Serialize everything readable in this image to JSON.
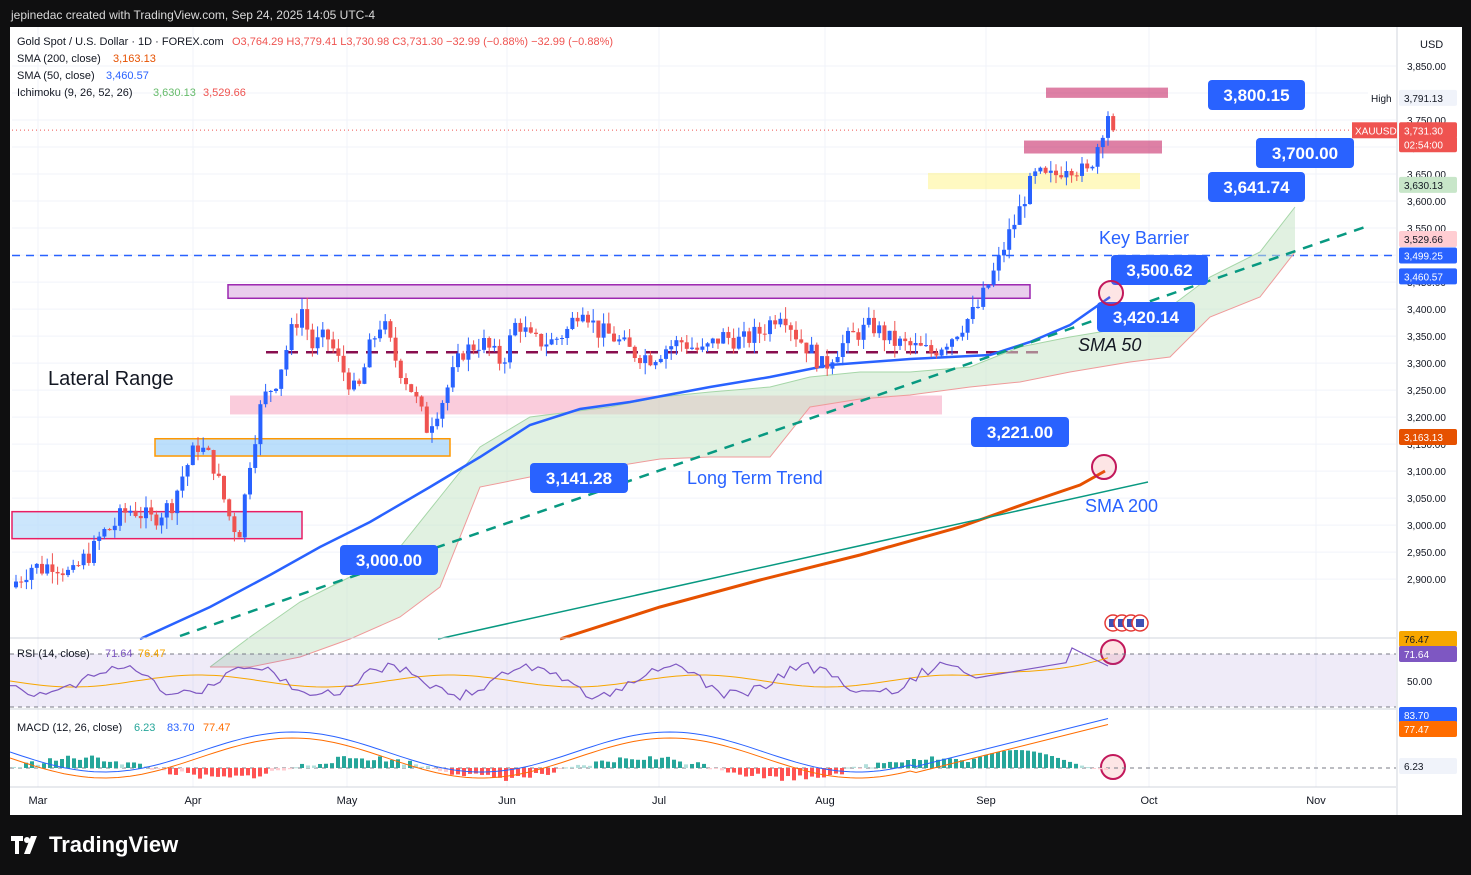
{
  "attribution": "jepinedac created with TradingView.com, Sep 24, 2025 14:05 UTC-4",
  "brand": "TradingView",
  "legend": {
    "symbol": "Gold Spot / U.S. Dollar · 1D · FOREX.com",
    "ohlc": "O3,764.29 H3,779.41 L3,730.98 C3,731.30 −32.99 (−0.88%) −32.99 (−0.88%)",
    "sma200_label": "SMA (200, close)",
    "sma200_value": "3,163.13",
    "sma50_label": "SMA (50, close)",
    "sma50_value": "3,460.57",
    "ichimoku_label": "Ichimoku (9, 26, 52, 26)",
    "ichimoku_a": "3,630.13",
    "ichimoku_b": "3,529.66",
    "rsi_label": "RSI (14, close)",
    "rsi_value": "71.64",
    "rsi_ma": "76.47",
    "macd_label": "MACD (12, 26, close)",
    "macd_hist": "6.23",
    "macd_line": "83.70",
    "macd_signal": "77.47"
  },
  "currency": "USD",
  "annotations": {
    "lateral_range": "Lateral Range",
    "key_barrier": "Key Barrier",
    "sma50": "SMA 50",
    "sma200": "SMA 200",
    "long_term_trend": "Long Term Trend",
    "callouts": [
      "3,800.15",
      "3,700.00",
      "3,641.74",
      "3,500.62",
      "3,420.14",
      "3,221.00",
      "3,141.28",
      "3,000.00"
    ]
  },
  "price_tags": {
    "high_label": "High",
    "high_value": "3,791.13",
    "symbol": "XAUUSD",
    "last": "3,731.30",
    "countdown": "02:54:00",
    "ichimoku_a": "3,630.13",
    "ichimoku_b": "3,529.66",
    "dashed_level": "3,499.25",
    "sma50": "3,460.57",
    "sma200": "3,163.13",
    "rsi": "71.64",
    "rsi_ma": "76.47",
    "rsi_mid": "50.00",
    "macd_line": "83.70",
    "macd_signal": "77.47",
    "macd_hist": "6.23"
  },
  "colors": {
    "bull": "#2962ff",
    "bear": "#ef5350",
    "sma50": "#2962ff",
    "sma200": "#e65100",
    "trend": "#089981",
    "callout": "#2962ff",
    "cloud": "#c8e6c9",
    "rsi": "#7e57c2",
    "signal": "#f7a600"
  },
  "chart_data": {
    "type": "candlestick",
    "title": "Gold Spot / U.S. Dollar · 1D · FOREX.com",
    "ylim": [
      2850,
      3880
    ],
    "y_ticks": [
      2900,
      2950,
      3000,
      3050,
      3100,
      3150,
      3200,
      3250,
      3300,
      3350,
      3400,
      3450,
      3500,
      3550,
      3600,
      3650,
      3700,
      3750,
      3800,
      3850
    ],
    "x_months": [
      "Mar",
      "Apr",
      "May",
      "Jun",
      "Jul",
      "Aug",
      "Sep",
      "Oct",
      "Nov"
    ],
    "zones": [
      {
        "name": "Lateral Range top",
        "from": 3420,
        "to": 3445
      },
      {
        "name": "Lateral Range support",
        "from": 3205,
        "to": 3240
      },
      {
        "name": "Support 3141",
        "from": 3128,
        "to": 3160
      },
      {
        "name": "Support 3000",
        "from": 2975,
        "to": 3025
      },
      {
        "name": "3641.74 zone",
        "from": 3622,
        "to": 3652
      },
      {
        "name": "3700 zone",
        "from": 3688,
        "to": 3712
      },
      {
        "name": "3800 zone",
        "from": 3791,
        "to": 3810
      }
    ],
    "dashed_level": 3499.25,
    "range_midline": 3320,
    "sma50_last": 3460.57,
    "sma200_last": 3163.13,
    "rsi_last": 71.64,
    "macd": {
      "hist": 6.23,
      "macd": 83.7,
      "signal": 77.47
    }
  }
}
